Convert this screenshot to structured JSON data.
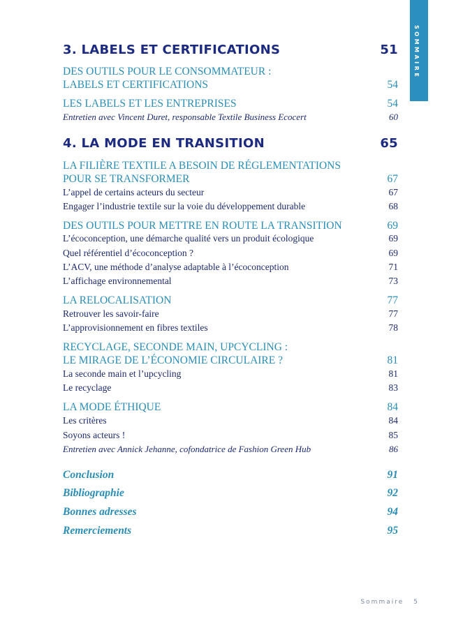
{
  "side_tab": "SOMMAIRE",
  "entries": [
    {
      "text": "3. LABELS ET CERTIFICATIONS",
      "page": "51"
    },
    {
      "text": "DES OUTILS POUR LE CONSOMMATEUR :",
      "text2": "LABELS ET CERTIFICATIONS",
      "page": "54"
    },
    {
      "text": "LES LABELS ET LES ENTREPRISES",
      "page": "54"
    },
    {
      "text": "Entretien avec Vincent Duret, responsable Textile Business Ecocert",
      "page": "60"
    },
    {
      "text": "4. LA MODE EN TRANSITION",
      "page": "65"
    },
    {
      "text": "LA FILIÈRE TEXTILE A BESOIN DE RÉGLEMENTATIONS",
      "text2": "POUR SE TRANSFORMER",
      "page": "67"
    },
    {
      "text": "L’appel de certains acteurs du secteur",
      "page": "67"
    },
    {
      "text": "Engager l’industrie textile sur la voie du développement durable",
      "page": "68"
    },
    {
      "text": "DES OUTILS POUR METTRE EN ROUTE LA TRANSITION",
      "page": "69"
    },
    {
      "text": "L’écoconception, une démarche qualité vers un produit écologique",
      "page": "69"
    },
    {
      "text": "Quel référentiel d’écoconception ?",
      "page": "69"
    },
    {
      "text": "L’ACV, une méthode d’analyse adaptable à l’écoconception",
      "page": "71"
    },
    {
      "text": "L’affichage environnemental",
      "page": "73"
    },
    {
      "text": "LA RELOCALISATION",
      "page": "77"
    },
    {
      "text": "Retrouver les savoir-faire",
      "page": "77"
    },
    {
      "text": "L’approvisionnement en fibres textiles",
      "page": "78"
    },
    {
      "text": "RECYCLAGE, SECONDE MAIN, UPCYCLING :",
      "text2": "LE MIRAGE DE L’ÉCONOMIE CIRCULAIRE ?",
      "page": "81"
    },
    {
      "text": "La seconde main et l’upcycling",
      "page": "81"
    },
    {
      "text": "Le recyclage",
      "page": "83"
    },
    {
      "text": "LA MODE ÉTHIQUE",
      "page": "84"
    },
    {
      "text": "Les critères",
      "page": "84"
    },
    {
      "text": "Soyons acteurs !",
      "page": "85"
    },
    {
      "text": "Entretien avec Annick Jehanne, cofondatrice de Fashion Green Hub",
      "page": "86"
    },
    {
      "text": "Conclusion",
      "page": "91"
    },
    {
      "text": "Bibliographie",
      "page": "92"
    },
    {
      "text": "Bonnes adresses",
      "page": "94"
    },
    {
      "text": "Remerciements",
      "page": "95"
    }
  ],
  "footer": {
    "label": "Sommaire",
    "page": "5"
  },
  "colors": {
    "navy": "#1c2a80",
    "teal": "#2a8db5",
    "tab": "#2b8fbf"
  }
}
